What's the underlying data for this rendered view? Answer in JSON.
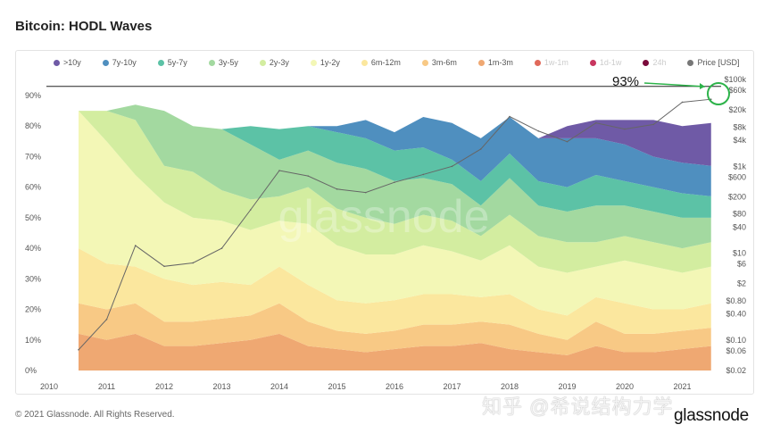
{
  "title": "Bitcoin: HODL Waves",
  "copyright": "© 2021 Glassnode. All Rights Reserved.",
  "watermark": "知乎 @希说结构力学",
  "logo": "glassnode",
  "plot_watermark": "glassnode",
  "legend": [
    {
      "label": ">10y",
      "color": "#6f5aa6",
      "active": true
    },
    {
      "label": "7y-10y",
      "color": "#4f8fbf",
      "active": true
    },
    {
      "label": "5y-7y",
      "color": "#5cc2a6",
      "active": true
    },
    {
      "label": "3y-5y",
      "color": "#a3d9a0",
      "active": true
    },
    {
      "label": "2y-3y",
      "color": "#d3eda0",
      "active": true
    },
    {
      "label": "1y-2y",
      "color": "#f3f7b6",
      "active": true
    },
    {
      "label": "6m-12m",
      "color": "#fbe79e",
      "active": true
    },
    {
      "label": "3m-6m",
      "color": "#f8c985",
      "active": true
    },
    {
      "label": "1m-3m",
      "color": "#efa872",
      "active": true
    },
    {
      "label": "1w-1m",
      "color": "#e0695a",
      "active": false
    },
    {
      "label": "1d-1w",
      "color": "#c8365f",
      "active": false
    },
    {
      "label": "24h",
      "color": "#7a0a3b",
      "active": false
    },
    {
      "label": "Price [USD]",
      "color": "#777777",
      "active": true
    }
  ],
  "annotation": {
    "label": "93%",
    "value": 93,
    "color": "#2db34a"
  },
  "chart_data": {
    "type": "area",
    "title": "Bitcoin: HODL Waves",
    "x": [
      2010.5,
      2011,
      2011.5,
      2012,
      2012.5,
      2013,
      2013.5,
      2014,
      2014.5,
      2015,
      2015.5,
      2016,
      2016.5,
      2017,
      2017.5,
      2018,
      2018.5,
      2019,
      2019.5,
      2020,
      2020.5,
      2021,
      2021.5
    ],
    "xticks": [
      "2010",
      "2011",
      "2012",
      "2013",
      "2014",
      "2015",
      "2016",
      "2017",
      "2018",
      "2019",
      "2020",
      "2021"
    ],
    "xlim": [
      2010,
      2021.7
    ],
    "ylim": [
      0,
      100
    ],
    "yticks": [
      "0%",
      "10%",
      "20%",
      "30%",
      "40%",
      "50%",
      "60%",
      "70%",
      "80%",
      "90%"
    ],
    "y2ticks": [
      "$100k",
      "$60k",
      "$20k",
      "$8k",
      "$4k",
      "$1k",
      "$600",
      "$200",
      "$80",
      "$40",
      "$10",
      "$6",
      "$2",
      "$0.80",
      "$0.40",
      "$0.10",
      "$0.06",
      "$0.02"
    ],
    "y2ticks_values": [
      100000,
      60000,
      20000,
      8000,
      4000,
      1000,
      600,
      200,
      80,
      40,
      10,
      6,
      2,
      0.8,
      0.4,
      0.1,
      0.06,
      0.02
    ],
    "y2lim": [
      0.02,
      100000
    ],
    "y2scale": "log",
    "series": [
      {
        "name": "1m-3m",
        "values": [
          12,
          10,
          12,
          8,
          8,
          9,
          10,
          12,
          8,
          7,
          6,
          7,
          8,
          8,
          9,
          7,
          6,
          5,
          8,
          6,
          6,
          7,
          8
        ]
      },
      {
        "name": "3m-6m",
        "values": [
          10,
          10,
          10,
          8,
          8,
          8,
          8,
          10,
          8,
          6,
          6,
          6,
          7,
          7,
          7,
          8,
          6,
          5,
          8,
          6,
          6,
          6,
          6
        ]
      },
      {
        "name": "6m-12m",
        "values": [
          18,
          15,
          12,
          14,
          12,
          12,
          10,
          12,
          12,
          10,
          10,
          10,
          10,
          10,
          8,
          10,
          8,
          8,
          8,
          10,
          8,
          7,
          8
        ]
      },
      {
        "name": "1y-2y",
        "values": [
          45,
          40,
          30,
          25,
          22,
          20,
          18,
          15,
          20,
          18,
          16,
          15,
          16,
          14,
          12,
          16,
          14,
          14,
          10,
          14,
          14,
          12,
          12
        ]
      },
      {
        "name": "2y-3y",
        "values": [
          0,
          10,
          18,
          12,
          15,
          10,
          10,
          8,
          12,
          12,
          12,
          10,
          10,
          10,
          8,
          10,
          10,
          10,
          8,
          8,
          8,
          8,
          8
        ]
      },
      {
        "name": "3y-5y",
        "values": [
          0,
          0,
          5,
          18,
          15,
          20,
          18,
          12,
          12,
          15,
          16,
          14,
          12,
          12,
          10,
          12,
          10,
          10,
          12,
          10,
          10,
          10,
          8
        ]
      },
      {
        "name": "5y-7y",
        "values": [
          0,
          0,
          0,
          0,
          0,
          0,
          6,
          10,
          8,
          10,
          10,
          10,
          10,
          8,
          8,
          8,
          8,
          8,
          10,
          8,
          8,
          8,
          7
        ]
      },
      {
        "name": "7y-10y",
        "values": [
          0,
          0,
          0,
          0,
          0,
          0,
          0,
          0,
          0,
          2,
          6,
          6,
          10,
          12,
          14,
          12,
          14,
          16,
          12,
          12,
          10,
          10,
          10
        ]
      },
      {
        "name": ">10y",
        "values": [
          0,
          0,
          0,
          0,
          0,
          0,
          0,
          0,
          0,
          0,
          0,
          0,
          0,
          0,
          0,
          0,
          0,
          4,
          6,
          8,
          12,
          12,
          14
        ]
      }
    ],
    "price": {
      "name": "Price [USD]",
      "values": [
        0.06,
        0.3,
        15,
        5,
        6,
        13,
        100,
        800,
        600,
        300,
        250,
        430,
        650,
        1000,
        2500,
        14000,
        6500,
        3700,
        10000,
        7200,
        9200,
        30000,
        35000
      ]
    }
  }
}
